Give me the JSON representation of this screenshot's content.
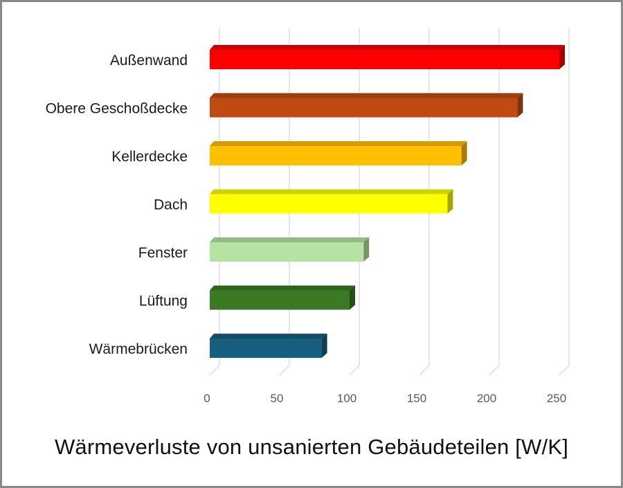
{
  "chart_data": {
    "type": "bar",
    "orientation": "horizontal",
    "style": "3d",
    "title": "Wärmeverluste von unsanierten Gebäudeteilen [W/K]",
    "xlabel": "",
    "ylabel": "",
    "xlim": [
      0,
      250
    ],
    "ticks": [
      0,
      50,
      100,
      150,
      200,
      250
    ],
    "grid": true,
    "categories": [
      "Außenwand",
      "Obere Geschoßdecke",
      "Kellerdecke",
      "Dach",
      "Fenster",
      "Lüftung",
      "Wärmebrücken"
    ],
    "values": [
      250,
      220,
      180,
      170,
      110,
      100,
      80
    ],
    "colors": [
      "#ff0000",
      "#c04b12",
      "#ffc000",
      "#ffff00",
      "#b5e3a3",
      "#3a7a22",
      "#175e80"
    ]
  }
}
